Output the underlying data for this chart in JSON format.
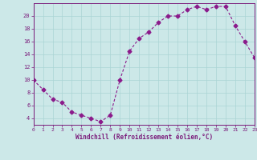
{
  "x": [
    0,
    1,
    2,
    3,
    4,
    5,
    6,
    7,
    8,
    9,
    10,
    11,
    12,
    13,
    14,
    15,
    16,
    17,
    18,
    19,
    20,
    21,
    22,
    23
  ],
  "y": [
    10,
    8.5,
    7,
    6.5,
    5,
    4.5,
    4,
    3.5,
    4.5,
    10,
    14.5,
    16.5,
    17.5,
    19,
    20,
    20,
    21,
    21.5,
    21,
    21.5,
    21.5,
    18.5,
    16,
    13.5
  ],
  "line_color": "#8b1a8b",
  "marker": "D",
  "marker_size": 2.5,
  "bg_color": "#cce8e8",
  "grid_color": "#aad4d4",
  "xlabel": "Windchill (Refroidissement éolien,°C)",
  "xlabel_color": "#7a1a7a",
  "tick_color": "#7a1a7a",
  "ylim": [
    3,
    22
  ],
  "xlim": [
    0,
    23
  ],
  "yticks": [
    4,
    6,
    8,
    10,
    12,
    14,
    16,
    18,
    20
  ],
  "xticks": [
    0,
    1,
    2,
    3,
    4,
    5,
    6,
    7,
    8,
    9,
    10,
    11,
    12,
    13,
    14,
    15,
    16,
    17,
    18,
    19,
    20,
    21,
    22,
    23
  ]
}
